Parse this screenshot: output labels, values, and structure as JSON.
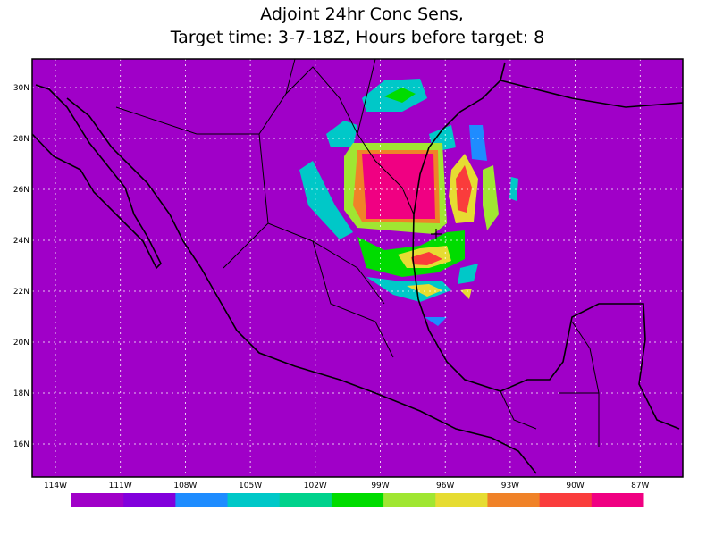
{
  "title": [
    "Adjoint 24hr Conc Sens,",
    "Target time: 3-7-18Z, Hours before target: 8"
  ],
  "lat_labels": [
    "30N",
    "28N",
    "26N",
    "24N",
    "22N",
    "20N",
    "18N",
    "16N"
  ],
  "lon_labels": [
    "114W",
    "111W",
    "108W",
    "105W",
    "102W",
    "99W",
    "96W",
    "93W",
    "90W",
    "87W"
  ],
  "colorbar": [
    "#a000c8",
    "#8200dc",
    "#1e8cff",
    "#00c8c8",
    "#00d28c",
    "#00dc00",
    "#a0e632",
    "#e6dc32",
    "#f08228",
    "#fa3c3c",
    "#f00082"
  ]
}
